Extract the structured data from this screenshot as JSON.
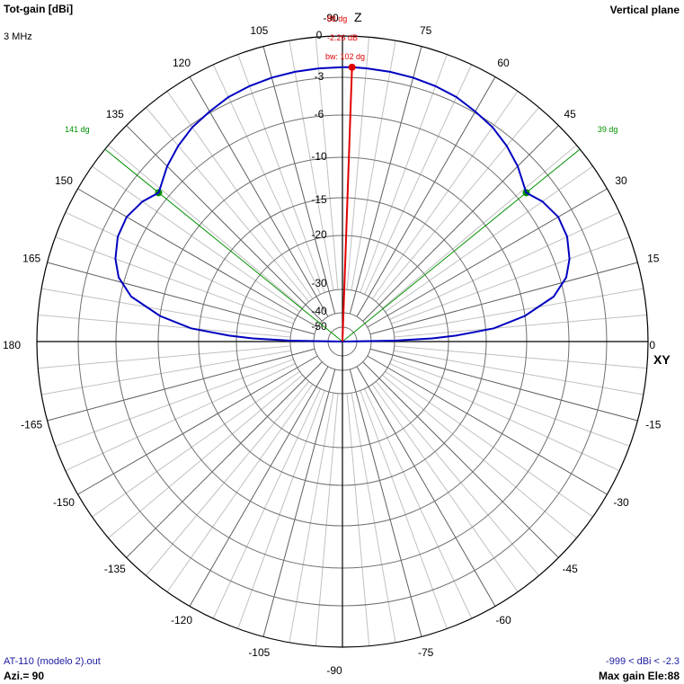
{
  "header": {
    "title": "Tot-gain [dBi]",
    "frequency": "3 MHz",
    "plane": "Vertical plane"
  },
  "footer": {
    "file": "AT-110 (modelo 2).out",
    "azimuth": "Azi.= 90",
    "range": "-999 < dBi < -2.3",
    "max_gain": "Max gain Ele:88"
  },
  "colors": {
    "pattern": "#0000c0",
    "main_lobe": "#e00000",
    "beamwidth": "#009000",
    "grid": "#a0a0a0",
    "axis": "#000000"
  },
  "chart_data": {
    "type": "polar",
    "title": "Tot-gain [dBi]",
    "angle_unit": "deg",
    "angle_ticks": [
      0,
      15,
      30,
      45,
      60,
      75,
      -90,
      105,
      120,
      135,
      150,
      165,
      180,
      -165,
      -150,
      -135,
      -120,
      -105,
      -90,
      -75,
      -60,
      -45,
      -30,
      -15
    ],
    "radial_ticks": [
      0,
      -3,
      -6,
      -10,
      -15,
      -20,
      -30,
      -40,
      -50
    ],
    "axis_labels": {
      "top": "Z",
      "right": "XY"
    },
    "max_gain": {
      "angle": 88,
      "label_angle": "88 dg",
      "label_gain": "-2.26 dB",
      "label_bw": "bw: 102 dg"
    },
    "beamwidth": {
      "left_angle": 141,
      "right_angle": 39,
      "left_label": "141 dg",
      "right_label": "39 dg"
    },
    "series": [
      {
        "angles": [
          0,
          1,
          2,
          3,
          5,
          8,
          12,
          16,
          20,
          25,
          30,
          35,
          39,
          45,
          50,
          55,
          60,
          65,
          70,
          75,
          80,
          85,
          88,
          90,
          95,
          100,
          105,
          110,
          115,
          120,
          125,
          130,
          135,
          141,
          145,
          150,
          155,
          160,
          164,
          168,
          172,
          175,
          177,
          178,
          179,
          180
        ],
        "gains": [
          -999,
          -30,
          -23,
          -19,
          -14,
          -10,
          -7,
          -5.5,
          -4.8,
          -4.3,
          -4.2,
          -4.6,
          -5.2,
          -4.3,
          -3.7,
          -3.2,
          -2.9,
          -2.6,
          -2.45,
          -2.35,
          -2.3,
          -2.27,
          -2.26,
          -2.26,
          -2.28,
          -2.3,
          -2.35,
          -2.45,
          -2.6,
          -2.9,
          -3.2,
          -3.7,
          -4.3,
          -5.2,
          -4.6,
          -4.2,
          -4.3,
          -4.8,
          -5.5,
          -7,
          -10,
          -14,
          -19,
          -23,
          -30,
          -999
        ]
      }
    ]
  }
}
